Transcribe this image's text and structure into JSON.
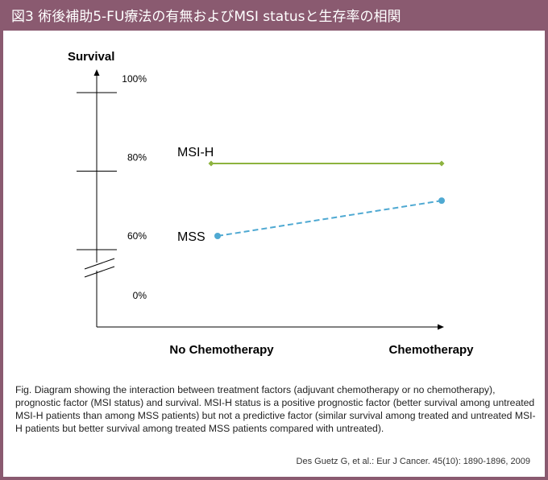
{
  "header": {
    "title": "図3 術後補助5-FU療法の有無およびMSI statusと生存率の相関"
  },
  "colors": {
    "frame": "#8a5a70",
    "msi_h": "#8db33e",
    "mss": "#4fa9d2",
    "axis": "#000000"
  },
  "chart_data": {
    "type": "line",
    "ylabel": "Survival",
    "categories": [
      "No Chemotherapy",
      "Chemotherapy"
    ],
    "y_ticks": [
      {
        "label": "100%",
        "value": 100
      },
      {
        "label": "80%",
        "value": 80
      },
      {
        "label": "60%",
        "value": 60
      },
      {
        "label": "0%",
        "value": 0
      }
    ],
    "axis_break": true,
    "series": [
      {
        "name": "MSI-H",
        "values": [
          78,
          78
        ],
        "style": "solid",
        "marker": "diamond",
        "color": "#8db33e"
      },
      {
        "name": "MSS",
        "values": [
          60,
          69
        ],
        "style": "dashed",
        "marker": "circle",
        "color": "#4fa9d2"
      }
    ]
  },
  "caption": {
    "text": "Fig.  Diagram showing the interaction between treatment factors (adjuvant chemotherapy or no chemotherapy), prognostic factor (MSI status) and survival. MSI-H status is a positive prognostic factor (better survival among untreated MSI-H patients than among MSS patients) but not a predictive factor (similar survival among treated and untreated MSI-H patients but better survival among treated MSS patients compared with untreated)."
  },
  "citation": {
    "text": "Des Guetz G, et al.: Eur J Cancer. 45(10): 1890-1896, 2009"
  }
}
